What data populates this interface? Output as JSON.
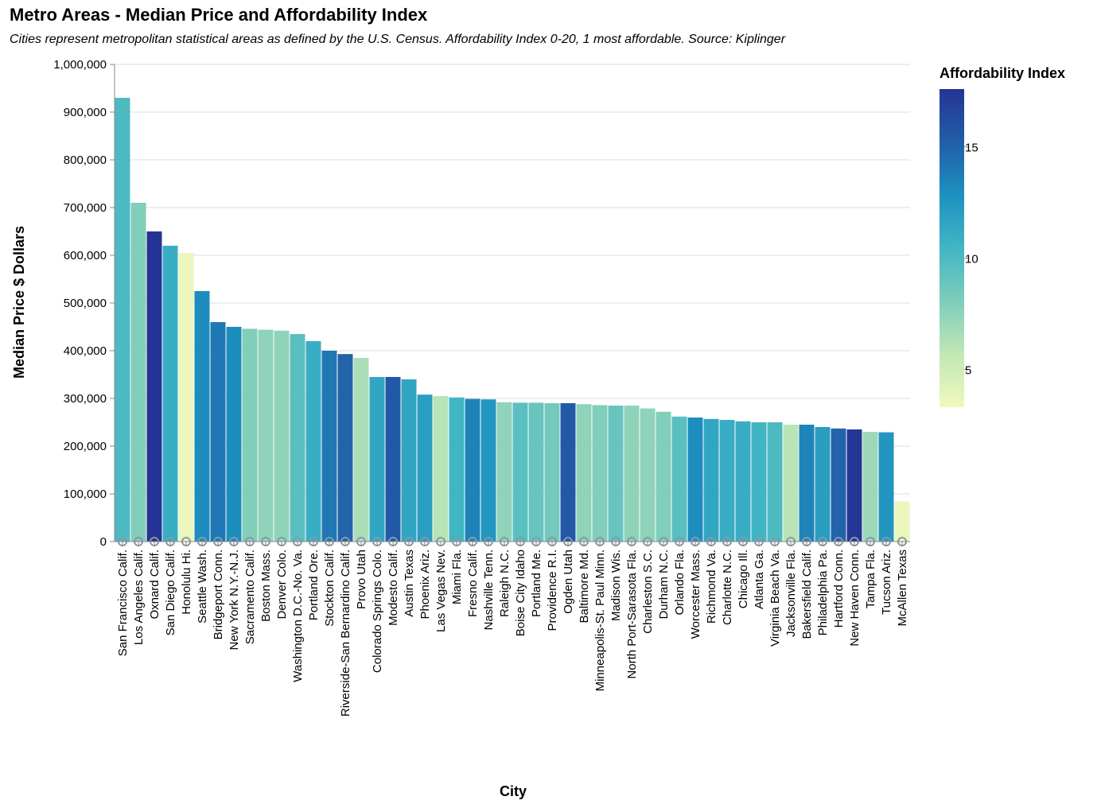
{
  "chart_data": {
    "type": "bar",
    "title": "Metro Areas - Median Price and Affordability Index",
    "subtitle": "Cities represent metropolitan statistical areas as defined by the U.S. Census. Affordability Index 0-20, 1 most affordable. Source: Kiplinger",
    "xlabel": "City",
    "ylabel": "Median Price $ Dollars",
    "ylim": [
      0,
      1000000
    ],
    "y_ticks": [
      "0",
      "100,000",
      "200,000",
      "300,000",
      "400,000",
      "500,000",
      "600,000",
      "700,000",
      "800,000",
      "900,000",
      "1,000,000"
    ],
    "grid": true,
    "legend": {
      "title": "Affordability Index",
      "placement": "right",
      "domain": [
        3.3,
        17.6
      ],
      "ticks": [
        "5",
        "10",
        "15"
      ],
      "tick_values": [
        5,
        10,
        15
      ],
      "colors": [
        "#eff9bd",
        "#c2e7b5",
        "#7fcdbb",
        "#41b6c4",
        "#1d91c0",
        "#225ea8",
        "#253494"
      ]
    },
    "categories": [
      "San Francisco Calif.",
      "Los Angeles Calif.",
      "Oxnard Calif.",
      "San Diego Calif.",
      "Honolulu Hi.",
      "Seattle Wash.",
      "Bridgeport Conn.",
      "New York N.Y.-N.J.",
      "Sacramento Calif.",
      "Boston Mass.",
      "Denver Colo.",
      "Washington D.C.-No. Va.",
      "Portland Ore.",
      "Stockton Calif.",
      "Riverside-San Bernardino Calif.",
      "Provo Utah",
      "Colorado Springs Colo.",
      "Modesto Calif.",
      "Austin Texas",
      "Phoenix Ariz.",
      "Las Vegas Nev.",
      "Miami Fla.",
      "Fresno Calif.",
      "Nashville Tenn.",
      "Raleigh N.C.",
      "Boise City Idaho",
      "Portland Me.",
      "Providence R.I.",
      "Ogden Utah",
      "Baltimore Md.",
      "Minneapolis-St. Paul Minn.",
      "Madison Wis.",
      "North Port-Sarasota Fla.",
      "Charleston S.C.",
      "Durham N.C.",
      "Orlando Fla.",
      "Worcester Mass.",
      "Richmond Va.",
      "Charlotte N.C.",
      "Chicago Ill.",
      "Atlanta Ga.",
      "Virginia Beach Va.",
      "Jacksonville Fla.",
      "Bakersfield Calif.",
      "Philadelphia Pa.",
      "Hartford Conn.",
      "New Haven Conn.",
      "Tampa Fla.",
      "Tucson Ariz.",
      "McAllen Texas"
    ],
    "values": [
      930000,
      710000,
      650000,
      620000,
      605000,
      525000,
      460000,
      450000,
      446000,
      444000,
      442000,
      435000,
      420000,
      400000,
      393000,
      385000,
      345000,
      345000,
      340000,
      308000,
      305000,
      302000,
      299000,
      298000,
      292000,
      291000,
      291000,
      290000,
      290000,
      288000,
      286000,
      285000,
      285000,
      279000,
      272000,
      262000,
      260000,
      257000,
      255000,
      252000,
      250000,
      250000,
      245000,
      245000,
      240000,
      237000,
      235000,
      230000,
      229000,
      84000
    ],
    "affordability": [
      10,
      8,
      17.6,
      11,
      3.5,
      13,
      14,
      13,
      8,
      7.5,
      7.5,
      9.5,
      11,
      14,
      15,
      6.5,
      11.5,
      15.5,
      11.5,
      12,
      6,
      10.5,
      13.5,
      12.5,
      7.5,
      9.5,
      9,
      8.5,
      15.5,
      7.5,
      8,
      9,
      7.5,
      7.5,
      8,
      9.5,
      13,
      11.5,
      11,
      11,
      10.5,
      10,
      6,
      13.5,
      12,
      15,
      17.5,
      7,
      12.5,
      3.5
    ]
  }
}
